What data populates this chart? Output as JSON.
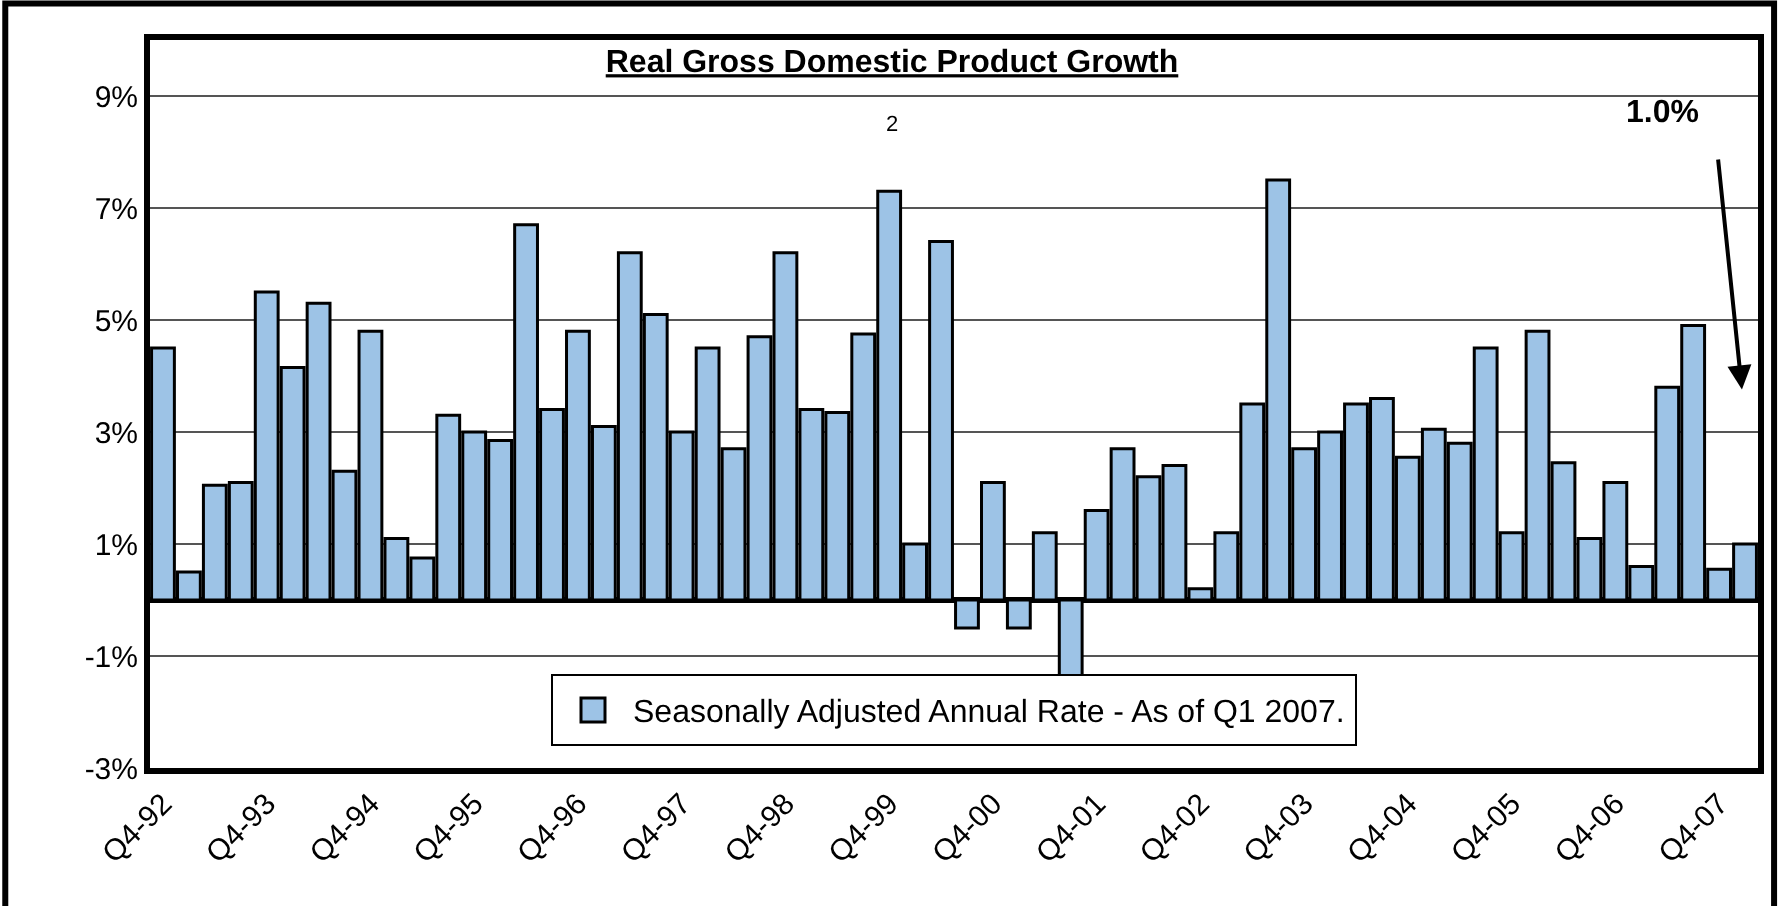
{
  "chart_data": {
    "type": "bar",
    "title": "Real Gross Domestic Product Growth",
    "subtitle": "2",
    "categories": [
      "Q4-92",
      null,
      null,
      null,
      "Q4-93",
      null,
      null,
      null,
      "Q4-94",
      null,
      null,
      null,
      "Q4-95",
      null,
      null,
      null,
      "Q4-96",
      null,
      null,
      null,
      "Q4-97",
      null,
      null,
      null,
      "Q4-98",
      null,
      null,
      null,
      "Q4-99",
      null,
      null,
      null,
      "Q4-00",
      null,
      null,
      null,
      "Q4-01",
      null,
      null,
      null,
      "Q4-02",
      null,
      null,
      null,
      "Q4-03",
      null,
      null,
      null,
      "Q4-04",
      null,
      null,
      null,
      "Q4-05",
      null,
      null,
      null,
      "Q4-06",
      null,
      null,
      null,
      "Q4-07",
      null
    ],
    "series": [
      {
        "name": "Seasonally Adjusted Annual Rate - As of Q1 2007.",
        "color": "#9dc3e6",
        "values": [
          4.5,
          0.5,
          2.05,
          2.1,
          5.5,
          4.15,
          5.3,
          2.3,
          4.8,
          1.1,
          0.75,
          3.3,
          3.0,
          2.85,
          6.7,
          3.4,
          4.8,
          3.1,
          6.2,
          5.1,
          3.0,
          4.5,
          2.7,
          4.7,
          6.2,
          3.4,
          3.35,
          4.75,
          7.3,
          1.0,
          6.4,
          -0.5,
          2.1,
          -0.5,
          1.2,
          -1.4,
          1.6,
          2.7,
          2.2,
          2.4,
          0.2,
          1.2,
          3.5,
          7.5,
          2.7,
          3.0,
          3.5,
          3.6,
          2.55,
          3.05,
          2.8,
          4.5,
          1.2,
          4.8,
          2.45,
          1.1,
          2.1,
          0.6,
          3.8,
          4.9,
          0.55,
          1.0
        ]
      }
    ],
    "ylim": [
      -3,
      10
    ],
    "yticks": [
      {
        "value": -3,
        "label": "-3%"
      },
      {
        "value": -1,
        "label": "-1%"
      },
      {
        "value": 1,
        "label": "1%"
      },
      {
        "value": 3,
        "label": "3%"
      },
      {
        "value": 5,
        "label": "5%"
      },
      {
        "value": 7,
        "label": "7%"
      },
      {
        "value": 9,
        "label": "9%"
      }
    ],
    "grid": "y",
    "legend": "bottom",
    "annotations": [
      "1.0%"
    ]
  }
}
